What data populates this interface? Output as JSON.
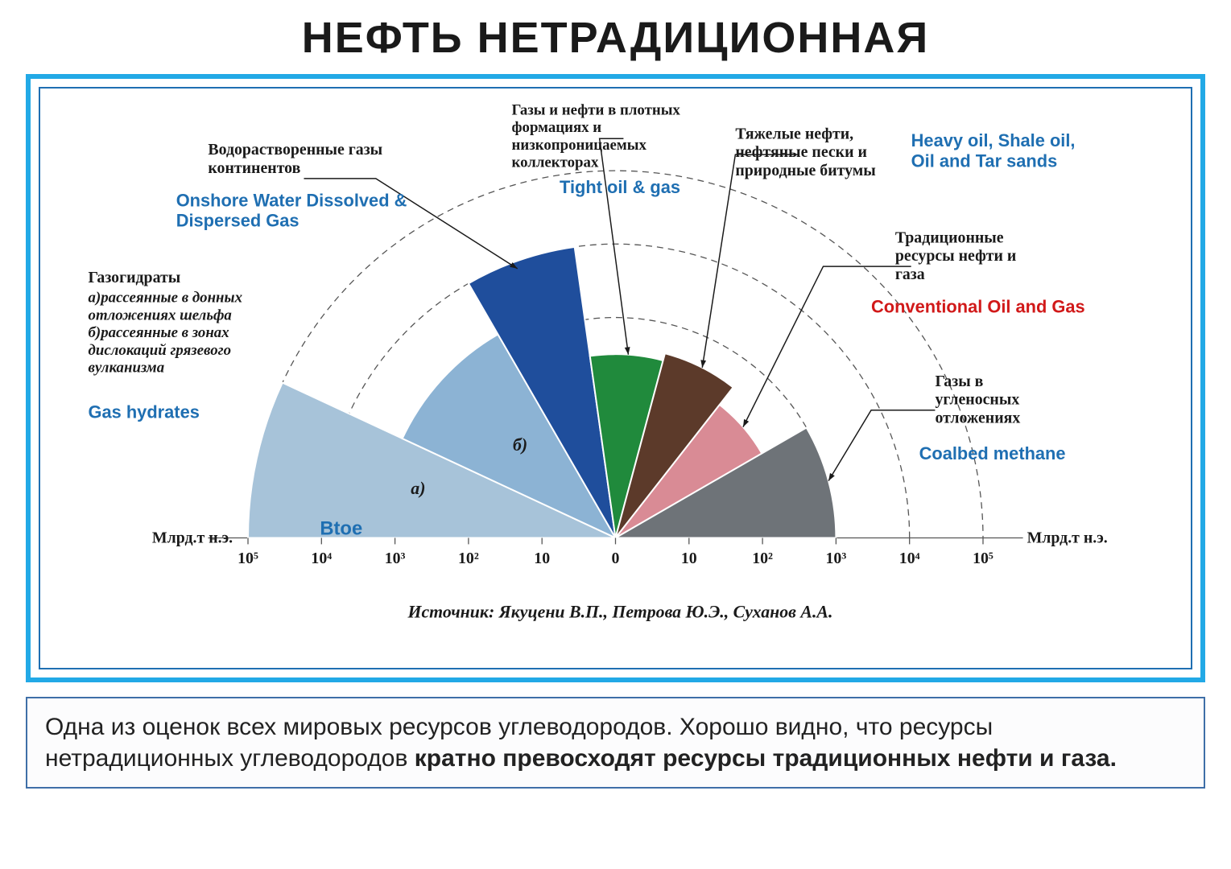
{
  "title": "НЕФТЬ  НЕТРАДИЦИОННАЯ",
  "caption": {
    "plain_start": "Одна из оценок всех мировых ресурсов углеводородов. Хорошо видно, что ресурсы нетрадиционных углеводородов ",
    "bold": "кратно превосходят ресурсы традиционных нефти и газа."
  },
  "source": "Источник: Якуцени В.П., Петрова Ю.Э., Суханов А.А.",
  "chart": {
    "type": "polar-rose-half",
    "background_color": "#ffffff",
    "frame_color": "#22a9e6",
    "inner_frame_color": "#1f6fb2",
    "ring_count": 5,
    "axis_label_left": "Млрд.т н.э.",
    "axis_label_right": "Млрд.т н.э.",
    "unit_label": "Btoe",
    "axis_ticks": [
      "10⁵",
      "10⁴",
      "10³",
      "10²",
      "10",
      "0",
      "10",
      "10²",
      "10³",
      "10⁴",
      "10⁵"
    ],
    "ring_radii_ratio": [
      0.2,
      0.4,
      0.6,
      0.8,
      1.0
    ],
    "sectors": [
      {
        "id": "gas_hydrates_a",
        "start_deg": 180,
        "end_deg": 155,
        "radius_ratio": 1.0,
        "fill": "#a7c3d9",
        "inset_label": "а)"
      },
      {
        "id": "gas_hydrates_b",
        "start_deg": 155,
        "end_deg": 120,
        "radius_ratio": 0.64,
        "fill": "#8cb3d4",
        "inset_label": "б)"
      },
      {
        "id": "onshore_water_gas",
        "start_deg": 120,
        "end_deg": 98,
        "radius_ratio": 0.8,
        "fill": "#1f4e9c"
      },
      {
        "id": "tight_oil_gas",
        "start_deg": 98,
        "end_deg": 75,
        "radius_ratio": 0.5,
        "fill": "#208a3c"
      },
      {
        "id": "heavy_oil",
        "start_deg": 75,
        "end_deg": 52,
        "radius_ratio": 0.52,
        "fill": "#5c3a2a"
      },
      {
        "id": "conventional",
        "start_deg": 52,
        "end_deg": 30,
        "radius_ratio": 0.46,
        "fill": "#d98b95"
      },
      {
        "id": "coalbed",
        "start_deg": 30,
        "end_deg": 0,
        "radius_ratio": 0.6,
        "fill": "#6e7378"
      }
    ],
    "labels": {
      "gas_hydrates": {
        "ru_title": "Газогидраты",
        "ru_a": "а)рассеянные в донных",
        "ru_a2": "отложениях шельфа",
        "ru_b": "б)рассеянные в зонах",
        "ru_b2": "дислокаций грязевого",
        "ru_b3": "вулканизма",
        "en": "Gas hydrates"
      },
      "onshore": {
        "ru1": "Водорастворенные газы",
        "ru2": "континентов",
        "en1": "Onshore Water Dissolved  &",
        "en2": "Dispersed  Gas"
      },
      "tight": {
        "ru1": "Газы и нефти в плотных",
        "ru2": "формациях и",
        "ru3": "низкопроницаемых",
        "ru4": "коллекторах",
        "en": "Tight oil & gas"
      },
      "heavy": {
        "ru1": "Тяжелые нефти,",
        "ru2": "нефтяные пески и",
        "ru3": "природные битумы",
        "en1": "Heavy oil, Shale oil,",
        "en2": "Oil  and Tar sands"
      },
      "conventional": {
        "ru1": "Традиционные",
        "ru2": "ресурсы нефти и",
        "ru3": "газа",
        "en": "Conventional Oil and Gas"
      },
      "coalbed": {
        "ru1": "Газы в",
        "ru2": "угленосных",
        "ru3": "отложениях",
        "en": "Coalbed methane"
      }
    },
    "font": {
      "label_ru_size": 20,
      "label_en_size": 22,
      "axis_size": 20,
      "source_size": 22
    }
  }
}
